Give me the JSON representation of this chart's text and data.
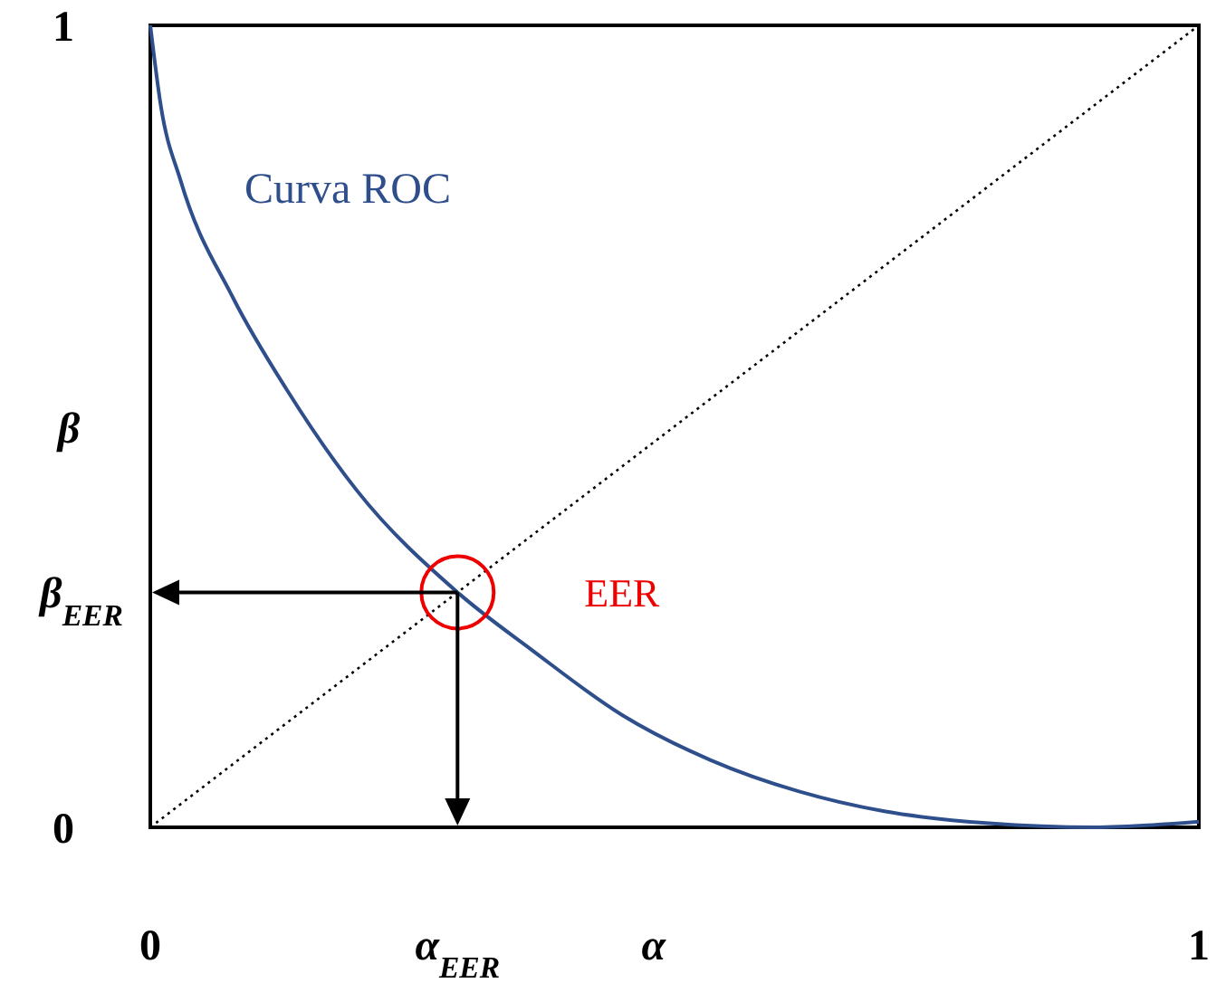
{
  "chart_data": {
    "type": "line",
    "xlabel": "α",
    "ylabel": "β",
    "xlim": [
      0,
      1
    ],
    "ylim": [
      0,
      1
    ],
    "xticks": [
      0,
      {
        "value": 0.293,
        "label": "α$_{EER}$"
      },
      1
    ],
    "yticks": [
      0,
      {
        "value": 0.293,
        "label": "β$_{EER}$"
      },
      1
    ],
    "grid": false,
    "marker": "none",
    "series": [
      {
        "name": "Curva ROC",
        "color": "#2e4f8c",
        "line_style": "solid",
        "x": [
          0,
          0.01,
          0.029,
          0.079,
          0.13,
          0.197,
          0.293,
          0.365,
          0.45,
          0.534,
          0.618,
          0.7,
          0.8,
          0.9,
          1
        ],
        "values": [
          1,
          0.9,
          0.806,
          0.66,
          0.546,
          0.42,
          0.293,
          0.22,
          0.14,
          0.084,
          0.045,
          0.02,
          0.005,
          0,
          0.007
        ]
      },
      {
        "color": "#000000",
        "line_style": "dotted",
        "x": [
          0,
          1
        ],
        "values": [
          0,
          1
        ]
      },
      {
        "type": "scatter",
        "color": "#ee0000",
        "marker": "circle",
        "x": [
          0.293
        ],
        "values": [
          0.293
        ]
      }
    ],
    "annotations": [
      "EER"
    ]
  }
}
